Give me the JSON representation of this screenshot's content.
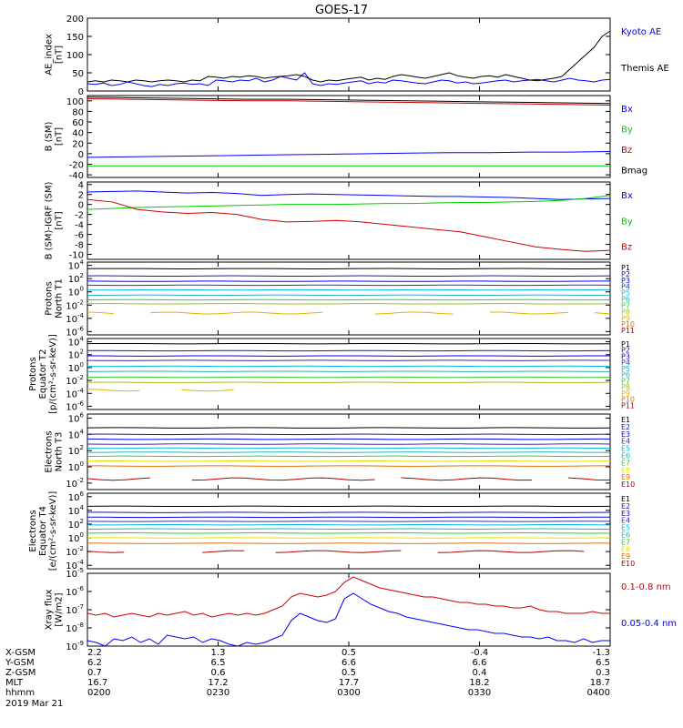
{
  "title": "GOES-17",
  "date_label": "2019 Mar 21",
  "colors": {
    "black": "#000000",
    "blue": "#0000ff",
    "green": "#00cc00",
    "red": "#cc0000",
    "navy": "#1a1aa0",
    "purple": "#4b2a9a",
    "cyan": "#00b8e0",
    "teal": "#2ab0b8",
    "lime": "#33cc33",
    "olive": "#a0c020",
    "yellow": "#e8e000",
    "gold": "#e8b000",
    "orange": "#e87000",
    "dkred": "#b00000",
    "crimson": "#cc0000"
  },
  "ephemeris": {
    "labels": [
      "X-GSM",
      "Y-GSM",
      "Z-GSM",
      "MLT",
      "hhmm"
    ],
    "columns": [
      [
        "2.2",
        "6.2",
        "0.7",
        "16.7",
        "0200"
      ],
      [
        "1.3",
        "6.5",
        "0.6",
        "17.2",
        "0230"
      ],
      [
        "0.5",
        "6.6",
        "0.5",
        "17.7",
        "0300"
      ],
      [
        "-0.4",
        "6.6",
        "0.4",
        "18.2",
        "0330"
      ],
      [
        "-1.3",
        "6.5",
        "0.3",
        "18.7",
        "0400"
      ]
    ]
  },
  "chart_data": [
    {
      "type": "line",
      "ylabel": [
        "AE_index",
        "[nT]"
      ],
      "ylim": [
        0,
        200
      ],
      "yticks": [
        "0",
        "50",
        "100",
        "150",
        "200"
      ],
      "x_range": [
        "0200",
        "0400"
      ],
      "series": [
        {
          "name": "Kyoto AE",
          "color": "blue",
          "values": [
            20,
            18,
            22,
            15,
            18,
            25,
            20,
            15,
            12,
            18,
            15,
            20,
            22,
            18,
            20,
            15,
            30,
            28,
            25,
            30,
            28,
            35,
            25,
            30,
            40,
            35,
            30,
            50,
            20,
            15,
            20,
            18,
            22,
            25,
            28,
            20,
            25,
            22,
            30,
            28,
            25,
            22,
            20,
            25,
            30,
            28,
            22,
            25,
            20,
            22,
            25,
            28,
            30,
            25,
            28,
            30,
            32,
            28,
            25,
            30,
            35,
            30,
            28,
            25,
            30,
            32
          ]
        },
        {
          "name": "Themis AE",
          "color": "black",
          "values": [
            25,
            28,
            25,
            30,
            28,
            25,
            30,
            28,
            25,
            28,
            30,
            28,
            25,
            30,
            28,
            40,
            38,
            35,
            40,
            38,
            42,
            40,
            35,
            38,
            40,
            42,
            45,
            40,
            30,
            25,
            30,
            28,
            32,
            35,
            38,
            30,
            35,
            32,
            40,
            45,
            42,
            38,
            35,
            40,
            45,
            50,
            42,
            38,
            35,
            40,
            42,
            38,
            45,
            40,
            35,
            30,
            28,
            32,
            35,
            40,
            60,
            80,
            100,
            120,
            150,
            165
          ]
        }
      ]
    },
    {
      "type": "line",
      "ylabel": [
        "B (SM)",
        "[nT]"
      ],
      "ylim": [
        -45,
        110
      ],
      "yticks": [
        "-40",
        "-20",
        "0",
        "20",
        "40",
        "60",
        "80",
        "100"
      ],
      "series": [
        {
          "name": "Bx",
          "color": "blue",
          "values": [
            -7,
            -6,
            -5,
            -4,
            -3,
            -2,
            -1,
            0,
            1,
            2,
            2,
            3,
            3,
            4
          ]
        },
        {
          "name": "By",
          "color": "green",
          "values": [
            -23,
            -23,
            -23,
            -23,
            -23,
            -23,
            -23,
            -23,
            -23,
            -23,
            -23,
            -23,
            -23,
            -23
          ]
        },
        {
          "name": "Bz",
          "color": "red",
          "values": [
            104,
            103,
            102,
            101,
            100,
            100,
            99,
            98,
            97,
            96,
            95,
            94,
            93,
            92
          ]
        },
        {
          "name": "Bmag",
          "color": "black",
          "values": [
            107,
            106,
            105,
            104,
            103,
            103,
            102,
            101,
            100,
            99,
            98,
            97,
            96,
            95
          ]
        }
      ]
    },
    {
      "type": "line",
      "ylabel": [
        "B (SM)-IGRF (SM)",
        "[nT]"
      ],
      "ylim": [
        -11,
        4.5
      ],
      "yticks": [
        "-10",
        "-8",
        "-6",
        "-4",
        "-2",
        "0",
        "2",
        "4"
      ],
      "series": [
        {
          "name": "Bx",
          "color": "blue",
          "values": [
            2.5,
            2.6,
            2.7,
            2.5,
            2.3,
            2.4,
            2.2,
            1.8,
            2.0,
            2.1,
            2.0,
            1.9,
            1.8,
            1.7,
            1.6,
            1.6,
            1.5,
            1.4,
            1.2,
            1.0,
            1.1,
            1.2
          ]
        },
        {
          "name": "By",
          "color": "green",
          "values": [
            -1.0,
            -0.8,
            -0.6,
            -0.5,
            -0.4,
            -0.3,
            -0.2,
            -0.1,
            0.0,
            0.0,
            0.0,
            0.1,
            0.2,
            0.2,
            0.3,
            0.4,
            0.4,
            0.5,
            0.6,
            0.8,
            1.2,
            1.8
          ]
        },
        {
          "name": "Bz",
          "color": "red",
          "values": [
            1.0,
            0.5,
            -1.0,
            -1.5,
            -1.8,
            -1.6,
            -2.0,
            -3.0,
            -3.5,
            -3.4,
            -3.2,
            -3.5,
            -4.0,
            -4.5,
            -5.0,
            -5.5,
            -6.5,
            -7.5,
            -8.5,
            -9.0,
            -9.4,
            -9.2
          ]
        }
      ]
    },
    {
      "type": "line",
      "log": true,
      "ylabel": [
        "Protons",
        "North T1"
      ],
      "ylim_exp": [
        -6.5,
        4.5
      ],
      "yticks_exp": [
        -6,
        -4,
        -2,
        0,
        2,
        4
      ],
      "series": [
        {
          "name": "P1",
          "color": "black",
          "exp": 3.5
        },
        {
          "name": "P2",
          "color": "navy",
          "exp": 2.4
        },
        {
          "name": "P3",
          "color": "blue",
          "exp": 1.6
        },
        {
          "name": "P4",
          "color": "purple",
          "exp": 1.0
        },
        {
          "name": "P5",
          "color": "cyan",
          "exp": 0.3
        },
        {
          "name": "P6",
          "color": "teal",
          "exp": -0.5
        },
        {
          "name": "P7",
          "color": "lime",
          "exp": -1.2
        },
        {
          "name": "P8",
          "color": "olive",
          "exp": -1.8
        },
        {
          "name": "P9",
          "color": "gold",
          "exp": -3.2,
          "segments": [
            [
              0,
              0.05
            ],
            [
              0.12,
              0.45
            ],
            [
              0.55,
              0.7
            ],
            [
              0.77,
              0.92
            ],
            [
              0.97,
              1.0
            ]
          ]
        },
        {
          "name": "P10",
          "color": "orange",
          "exp": null
        },
        {
          "name": "P11",
          "color": "dkred",
          "exp": null
        }
      ]
    },
    {
      "type": "line",
      "log": true,
      "ylabel": [
        "Protons",
        "Equator T2",
        "[p/(cm²-s-sr-keV)]"
      ],
      "ylim_exp": [
        -6.5,
        4.5
      ],
      "yticks_exp": [
        -6,
        -4,
        -2,
        0,
        2,
        4
      ],
      "series": [
        {
          "name": "P1",
          "color": "black",
          "exp": 3.7
        },
        {
          "name": "P2",
          "color": "navy",
          "exp": 2.6
        },
        {
          "name": "P3",
          "color": "blue",
          "exp": 1.8
        },
        {
          "name": "P4",
          "color": "purple",
          "exp": 1.1
        },
        {
          "name": "P5",
          "color": "cyan",
          "exp": 0.2
        },
        {
          "name": "P6",
          "color": "teal",
          "exp": -0.6
        },
        {
          "name": "P7",
          "color": "lime",
          "exp": -1.5
        },
        {
          "name": "P8",
          "color": "olive",
          "exp": -2.3
        },
        {
          "name": "P9",
          "color": "gold",
          "exp": -3.5,
          "segments": [
            [
              0,
              0.1
            ],
            [
              0.18,
              0.28
            ]
          ]
        },
        {
          "name": "P10",
          "color": "orange",
          "exp": null
        },
        {
          "name": "P11",
          "color": "dkred",
          "exp": null
        }
      ]
    },
    {
      "type": "line",
      "log": true,
      "ylabel": [
        "Electrons",
        "North T3"
      ],
      "ylim_exp": [
        -2.8,
        6.5
      ],
      "yticks_exp": [
        -2,
        0,
        2,
        4,
        6
      ],
      "series": [
        {
          "name": "E1",
          "color": "black",
          "exp": 4.8
        },
        {
          "name": "E2",
          "color": "navy",
          "exp": 4.0
        },
        {
          "name": "E3",
          "color": "blue",
          "exp": 3.4
        },
        {
          "name": "E4",
          "color": "purple",
          "exp": 2.8
        },
        {
          "name": "E5",
          "color": "cyan",
          "exp": 2.3
        },
        {
          "name": "E6",
          "color": "teal",
          "exp": 1.8
        },
        {
          "name": "E7",
          "color": "lime",
          "exp": 1.3
        },
        {
          "name": "E8",
          "color": "yellow",
          "exp": 0.7
        },
        {
          "name": "E9",
          "color": "orange",
          "exp": 0.1
        },
        {
          "name": "E10",
          "color": "dkred",
          "exp": -1.5,
          "segments": [
            [
              0,
              0.12
            ],
            [
              0.2,
              0.55
            ],
            [
              0.6,
              0.85
            ],
            [
              0.92,
              1.0
            ]
          ]
        }
      ]
    },
    {
      "type": "line",
      "log": true,
      "ylabel": [
        "Electrons",
        "Equator T4",
        "[e/(cm²-s-sr-keV)]"
      ],
      "ylim_exp": [
        -4.5,
        6.5
      ],
      "yticks_exp": [
        -4,
        -2,
        0,
        2,
        4,
        6
      ],
      "series": [
        {
          "name": "E1",
          "color": "black",
          "exp": 4.6
        },
        {
          "name": "E2",
          "color": "navy",
          "exp": 3.7
        },
        {
          "name": "E3",
          "color": "blue",
          "exp": 3.0
        },
        {
          "name": "E4",
          "color": "purple",
          "exp": 2.4
        },
        {
          "name": "E5",
          "color": "cyan",
          "exp": 1.9
        },
        {
          "name": "E6",
          "color": "teal",
          "exp": 1.3
        },
        {
          "name": "E7",
          "color": "lime",
          "exp": 0.7
        },
        {
          "name": "E8",
          "color": "yellow",
          "exp": 0.0
        },
        {
          "name": "E9",
          "color": "orange",
          "exp": -0.8
        },
        {
          "name": "E10",
          "color": "dkred",
          "exp": -2.0,
          "segments": [
            [
              0,
              0.07
            ],
            [
              0.22,
              0.3
            ],
            [
              0.36,
              0.6
            ],
            [
              0.67,
              0.95
            ]
          ]
        }
      ]
    },
    {
      "type": "line",
      "log": true,
      "ylabel": [
        "Xray flux",
        "[W/m2]"
      ],
      "ylim_exp": [
        -9,
        -5
      ],
      "yticks_exp": [
        -9,
        -8,
        -7,
        -6,
        -5
      ],
      "series": [
        {
          "name": "0.1-0.8 nm",
          "color": "red",
          "log_values": [
            -7.2,
            -7.3,
            -7.2,
            -7.4,
            -7.3,
            -7.2,
            -7.3,
            -7.4,
            -7.2,
            -7.3,
            -7.2,
            -7.1,
            -7.3,
            -7.2,
            -7.4,
            -7.3,
            -7.2,
            -7.3,
            -7.2,
            -7.3,
            -7.2,
            -7.0,
            -6.8,
            -6.3,
            -6.1,
            -6.2,
            -6.3,
            -6.2,
            -6.0,
            -5.5,
            -5.2,
            -5.4,
            -5.6,
            -5.8,
            -5.9,
            -6.0,
            -6.1,
            -6.2,
            -6.3,
            -6.3,
            -6.4,
            -6.5,
            -6.6,
            -6.6,
            -6.7,
            -6.7,
            -6.8,
            -6.8,
            -6.9,
            -6.9,
            -6.8,
            -7.0,
            -7.1,
            -7.1,
            -7.2,
            -7.2,
            -7.2,
            -7.1,
            -7.2,
            -7.2
          ]
        },
        {
          "name": "0.05-0.4 nm",
          "color": "blue",
          "log_values": [
            -8.7,
            -8.8,
            -9.0,
            -8.6,
            -8.7,
            -8.5,
            -8.8,
            -8.6,
            -8.9,
            -8.4,
            -8.5,
            -8.6,
            -8.5,
            -8.8,
            -8.6,
            -8.7,
            -8.9,
            -9.0,
            -8.8,
            -8.9,
            -8.8,
            -8.6,
            -8.4,
            -7.6,
            -7.2,
            -7.4,
            -7.6,
            -7.7,
            -7.5,
            -6.4,
            -6.1,
            -6.4,
            -6.7,
            -6.9,
            -7.1,
            -7.2,
            -7.4,
            -7.5,
            -7.6,
            -7.7,
            -7.8,
            -7.9,
            -8.0,
            -8.1,
            -8.1,
            -8.2,
            -8.3,
            -8.3,
            -8.4,
            -8.5,
            -8.5,
            -8.6,
            -8.5,
            -8.7,
            -8.7,
            -8.8,
            -8.6,
            -8.8,
            -8.7,
            -8.7
          ]
        }
      ]
    }
  ]
}
